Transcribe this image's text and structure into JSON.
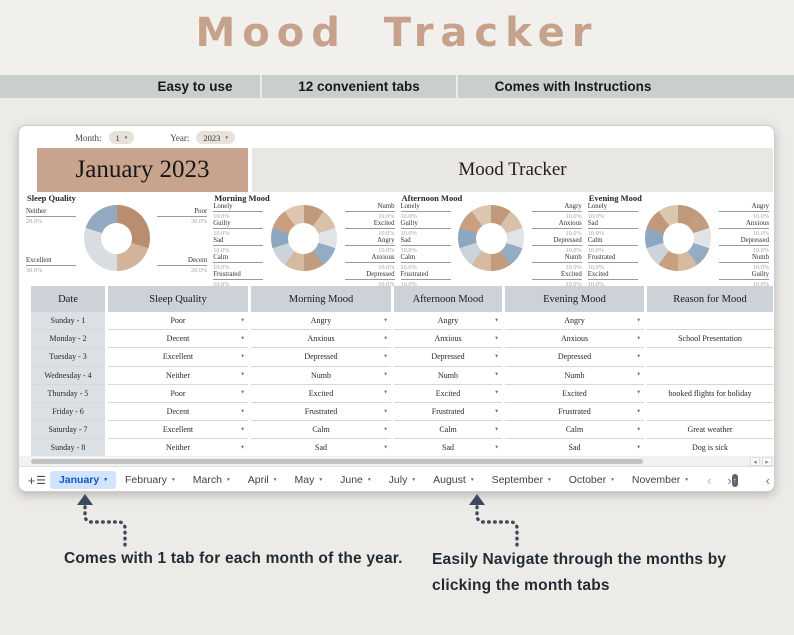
{
  "page": {
    "title": "Mood Tracker",
    "features": [
      "Easy to use",
      "12 convenient tabs",
      "Comes with Instructions"
    ],
    "annotations": {
      "left": "Comes with 1 tab for each month of the year.",
      "right_line1": "Easily Navigate through the months by",
      "right_line2": "clicking the month tabs"
    },
    "colors": {
      "accent_tan": "#c8a48f",
      "title_tan": "#c6a28c",
      "bar_gray": "#c9cfcc",
      "active_tab_blue": "#0b57d0"
    }
  },
  "spreadsheet": {
    "controls": {
      "month_label": "Month:",
      "month_value": "1",
      "year_label": "Year:",
      "year_value": "2023"
    },
    "banner": {
      "month_title": "January 2023",
      "sheet_title": "Mood Tracker"
    },
    "table": {
      "headers": [
        "Date",
        "Sleep Quality",
        "Morning Mood",
        "Afternoon Mood",
        "Evening Mood",
        "Reason for Mood"
      ],
      "rows": [
        {
          "date": "Sunday - 1",
          "sleep": "Poor",
          "morning": "Angry",
          "afternoon": "Angry",
          "evening": "Angry",
          "reason": ""
        },
        {
          "date": "Monday - 2",
          "sleep": "Decent",
          "morning": "Anxious",
          "afternoon": "Anxious",
          "evening": "Anxious",
          "reason": "School Presentation"
        },
        {
          "date": "Tuesday - 3",
          "sleep": "Excellent",
          "morning": "Depressed",
          "afternoon": "Depressed",
          "evening": "Depressed",
          "reason": ""
        },
        {
          "date": "Wednesday - 4",
          "sleep": "Neither",
          "morning": "Numb",
          "afternoon": "Numb",
          "evening": "Numb",
          "reason": ""
        },
        {
          "date": "Thursday - 5",
          "sleep": "Poor",
          "morning": "Excited",
          "afternoon": "Excited",
          "evening": "Excited",
          "reason": "booked flights for holiday"
        },
        {
          "date": "Friday - 6",
          "sleep": "Decent",
          "morning": "Frustrated",
          "afternoon": "Frustrated",
          "evening": "Frustrated",
          "reason": ""
        },
        {
          "date": "Saturday - 7",
          "sleep": "Excellent",
          "morning": "Calm",
          "afternoon": "Calm",
          "evening": "Calm",
          "reason": "Great weather"
        },
        {
          "date": "Sunday - 8",
          "sleep": "Neither",
          "morning": "Sad",
          "afternoon": "Sad",
          "evening": "Sad",
          "reason": "Dog is sick"
        }
      ]
    },
    "tabs": [
      {
        "label": "January",
        "active": true
      },
      {
        "label": "February",
        "active": false
      },
      {
        "label": "March",
        "active": false
      },
      {
        "label": "April",
        "active": false
      },
      {
        "label": "May",
        "active": false
      },
      {
        "label": "June",
        "active": false
      },
      {
        "label": "July",
        "active": false
      },
      {
        "label": "August",
        "active": false
      },
      {
        "label": "September",
        "active": false
      },
      {
        "label": "October",
        "active": false
      },
      {
        "label": "November",
        "active": false
      }
    ]
  },
  "icons": {
    "caret": "▾",
    "plus": "+",
    "menu": "☰",
    "chev_left": "‹",
    "chev_right": "›",
    "panel_arrow": "↑"
  },
  "chart_data": [
    {
      "type": "pie",
      "title": "Sleep Quality",
      "slices": [
        {
          "label": "Poor",
          "pct": 30,
          "pct_label": "30.0%",
          "color": "#b98e6f",
          "side": "right"
        },
        {
          "label": "Decent",
          "pct": 20,
          "pct_label": "20.0%",
          "color": "#d3b49a",
          "side": "right"
        },
        {
          "label": "Excellent",
          "pct": 30,
          "pct_label": "30.0%",
          "color": "#d9dde2",
          "side": "left"
        },
        {
          "label": "Neither",
          "pct": 20,
          "pct_label": "20.0%",
          "color": "#92a9c0",
          "side": "left"
        }
      ]
    },
    {
      "type": "pie",
      "title": "Morning Mood",
      "slices": [
        {
          "label": "Numb",
          "pct": 10,
          "pct_label": "10.0%",
          "color": "#c0987a",
          "side": "right"
        },
        {
          "label": "Excited",
          "pct": 10,
          "pct_label": "10.0%",
          "color": "#d9c0a8",
          "side": "right"
        },
        {
          "label": "Angry",
          "pct": 10,
          "pct_label": "10.0%",
          "color": "#e0e3e7",
          "side": "right"
        },
        {
          "label": "Anxious",
          "pct": 10,
          "pct_label": "10.0%",
          "color": "#93acc3",
          "side": "right"
        },
        {
          "label": "Depressed",
          "pct": 10,
          "pct_label": "10.0%",
          "color": "#c39b7d",
          "side": "right"
        },
        {
          "label": "Frustrated",
          "pct": 10,
          "pct_label": "10.0%",
          "color": "#d5ba9f",
          "side": "left"
        },
        {
          "label": "Calm",
          "pct": 10,
          "pct_label": "10.0%",
          "color": "#ccd3da",
          "side": "left"
        },
        {
          "label": "Sad",
          "pct": 10,
          "pct_label": "10.0%",
          "color": "#8ca7bf",
          "side": "left"
        },
        {
          "label": "Guilty",
          "pct": 10,
          "pct_label": "10.0%",
          "color": "#c99f80",
          "side": "left"
        },
        {
          "label": "Lonely",
          "pct": 10,
          "pct_label": "10.0%",
          "color": "#dcc6b0",
          "side": "left"
        }
      ]
    },
    {
      "type": "pie",
      "title": "Afternoon Mood",
      "slices": [
        {
          "label": "Angry",
          "pct": 10,
          "pct_label": "10.0%",
          "color": "#c0987a",
          "side": "right"
        },
        {
          "label": "Anxious",
          "pct": 10,
          "pct_label": "10.0%",
          "color": "#d9c0a8",
          "side": "right"
        },
        {
          "label": "Depressed",
          "pct": 10,
          "pct_label": "10.0%",
          "color": "#e0e3e7",
          "side": "right"
        },
        {
          "label": "Numb",
          "pct": 10,
          "pct_label": "10.0%",
          "color": "#93acc3",
          "side": "right"
        },
        {
          "label": "Excited",
          "pct": 10,
          "pct_label": "10.0%",
          "color": "#c39b7d",
          "side": "right"
        },
        {
          "label": "Frustrated",
          "pct": 10,
          "pct_label": "10.0%",
          "color": "#d5ba9f",
          "side": "left"
        },
        {
          "label": "Calm",
          "pct": 10,
          "pct_label": "10.0%",
          "color": "#ccd3da",
          "side": "left"
        },
        {
          "label": "Sad",
          "pct": 10,
          "pct_label": "10.0%",
          "color": "#8ca7bf",
          "side": "left"
        },
        {
          "label": "Guilty",
          "pct": 10,
          "pct_label": "10.0%",
          "color": "#c99f80",
          "side": "left"
        },
        {
          "label": "Lonely",
          "pct": 10,
          "pct_label": "10.0%",
          "color": "#dcc6b0",
          "side": "left"
        }
      ]
    },
    {
      "type": "pie",
      "title": "Evening Mood",
      "slices": [
        {
          "label": "Angry",
          "pct": 10,
          "pct_label": "10.0%",
          "color": "#c0987a",
          "side": "right"
        },
        {
          "label": "Anxious",
          "pct": 10,
          "pct_label": "10.0%",
          "color": "#c39b7d",
          "side": "right"
        },
        {
          "label": "Depressed",
          "pct": 10,
          "pct_label": "10.0%",
          "color": "#e0e3e7",
          "side": "right"
        },
        {
          "label": "Numb",
          "pct": 10,
          "pct_label": "10.0%",
          "color": "#93acc3",
          "side": "right"
        },
        {
          "label": "Guilty",
          "pct": 10,
          "pct_label": "10.0%",
          "color": "#d5ba9f",
          "side": "right"
        },
        {
          "label": "Excited",
          "pct": 10,
          "pct_label": "10.0%",
          "color": "#c99f80",
          "side": "left"
        },
        {
          "label": "Frustrated",
          "pct": 10,
          "pct_label": "10.0%",
          "color": "#ccd3da",
          "side": "left"
        },
        {
          "label": "Calm",
          "pct": 10,
          "pct_label": "10.0%",
          "color": "#8ca7bf",
          "side": "left"
        },
        {
          "label": "Sad",
          "pct": 10,
          "pct_label": "10.0%",
          "color": "#c0987a",
          "side": "left"
        },
        {
          "label": "Lonely",
          "pct": 10,
          "pct_label": "10.0%",
          "color": "#dcc6b0",
          "side": "left"
        }
      ]
    }
  ]
}
